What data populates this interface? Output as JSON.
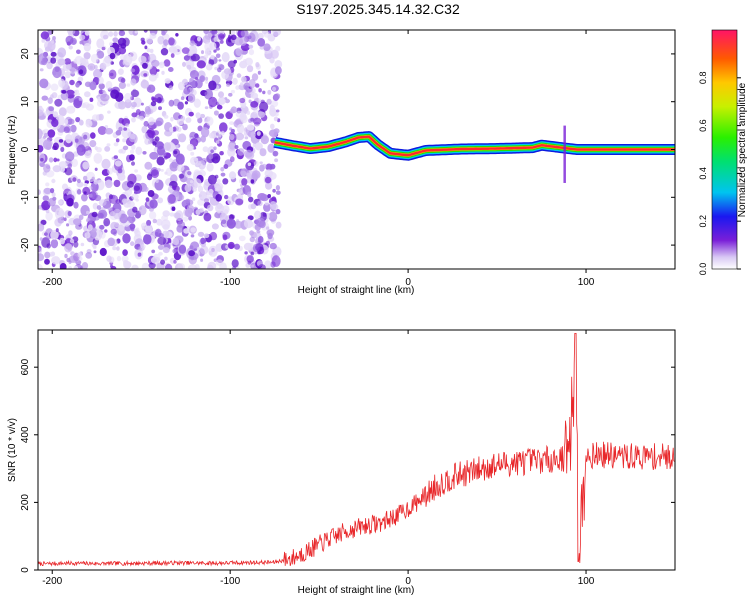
{
  "title": "S197.2025.345.14.32.C32",
  "chart_data": [
    {
      "type": "heatmap",
      "xlabel": "Height of straight line (km)",
      "ylabel": "Frequency (Hz)",
      "xlim": [
        -208,
        150
      ],
      "ylim": [
        -25,
        25
      ],
      "xticks": [
        -200,
        -100,
        0,
        100
      ],
      "yticks": [
        -20,
        -10,
        0,
        10,
        20
      ],
      "signal_start_km": -75,
      "signal_track": {
        "x": [
          -75,
          -65,
          -55,
          -45,
          -35,
          -28,
          -22,
          -17,
          -10,
          0,
          10,
          30,
          50,
          70,
          75,
          88,
          95,
          150
        ],
        "freq": [
          1.5,
          0.8,
          0.2,
          0.6,
          1.6,
          2.5,
          2.7,
          1.0,
          -0.8,
          -1.2,
          -0.2,
          0.1,
          0.2,
          0.4,
          0.9,
          0.3,
          0.0,
          0.0
        ]
      },
      "colorbar": {
        "label": "Normalized spectral amplitude",
        "range": [
          0.0,
          1.0
        ],
        "ticks": [
          "0.0",
          "0.2",
          "0.4",
          "0.6",
          "0.8"
        ],
        "tick_values": [
          0.0,
          0.2,
          0.4,
          0.6,
          0.8
        ]
      }
    },
    {
      "type": "line",
      "xlabel": "Height of straight line (km)",
      "ylabel": "SNR (10 * v/v)",
      "xlim": [
        -208,
        150
      ],
      "ylim": [
        0,
        710
      ],
      "xticks": [
        -200,
        -100,
        0,
        100
      ],
      "yticks": [
        0,
        200,
        400,
        600
      ],
      "series": [
        {
          "name": "SNR",
          "color": "#e8272a",
          "x": [
            -208,
            -190,
            -170,
            -150,
            -130,
            -110,
            -90,
            -75,
            -65,
            -55,
            -45,
            -35,
            -25,
            -15,
            -5,
            5,
            15,
            25,
            35,
            45,
            55,
            65,
            75,
            85,
            90,
            94,
            96,
            100,
            110,
            120,
            130,
            140,
            150
          ],
          "y": [
            18,
            20,
            19,
            20,
            21,
            20,
            22,
            23,
            35,
            60,
            90,
            115,
            130,
            140,
            165,
            200,
            245,
            275,
            290,
            305,
            315,
            320,
            325,
            330,
            330,
            580,
            60,
            340,
            340,
            335,
            335,
            335,
            335
          ]
        }
      ]
    }
  ]
}
